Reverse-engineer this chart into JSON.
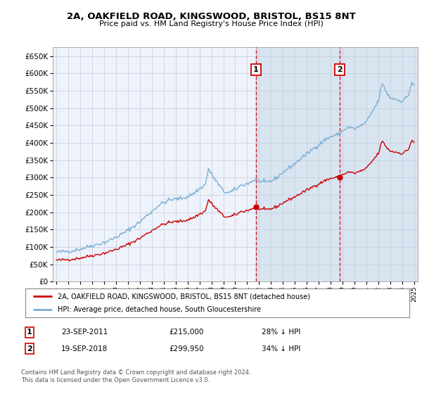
{
  "title_line1": "2A, OAKFIELD ROAD, KINGSWOOD, BRISTOL, BS15 8NT",
  "title_line2": "Price paid vs. HM Land Registry's House Price Index (HPI)",
  "ylabel_ticks": [
    0,
    50000,
    100000,
    150000,
    200000,
    250000,
    300000,
    350000,
    400000,
    450000,
    500000,
    550000,
    600000,
    650000
  ],
  "ylim": [
    0,
    675000
  ],
  "xlim_left": 1994.7,
  "xlim_right": 2025.3,
  "sale1_date": "23-SEP-2011",
  "sale1_price": 215000,
  "sale1_year": 2011.73,
  "sale2_date": "19-SEP-2018",
  "sale2_price": 299950,
  "sale2_year": 2018.73,
  "sale1_note": "28% ↓ HPI",
  "sale2_note": "34% ↓ HPI",
  "legend_line1": "2A, OAKFIELD ROAD, KINGSWOOD, BRISTOL, BS15 8NT (detached house)",
  "legend_line2": "HPI: Average price, detached house, South Gloucestershire",
  "footnote": "Contains HM Land Registry data © Crown copyright and database right 2024.\nThis data is licensed under the Open Government Licence v3.0.",
  "hpi_color": "#7bafd4",
  "price_color": "#cc0000",
  "background_color": "#ffffff",
  "plot_bg_color": "#eef2fa",
  "grid_color": "#c8d0e0",
  "shade_color": "#d8e4f0",
  "xtick_years": [
    1995,
    1996,
    1997,
    1998,
    1999,
    2000,
    2001,
    2002,
    2003,
    2004,
    2005,
    2006,
    2007,
    2008,
    2009,
    2010,
    2011,
    2012,
    2013,
    2014,
    2015,
    2016,
    2017,
    2018,
    2019,
    2020,
    2021,
    2022,
    2023,
    2024,
    2025
  ]
}
